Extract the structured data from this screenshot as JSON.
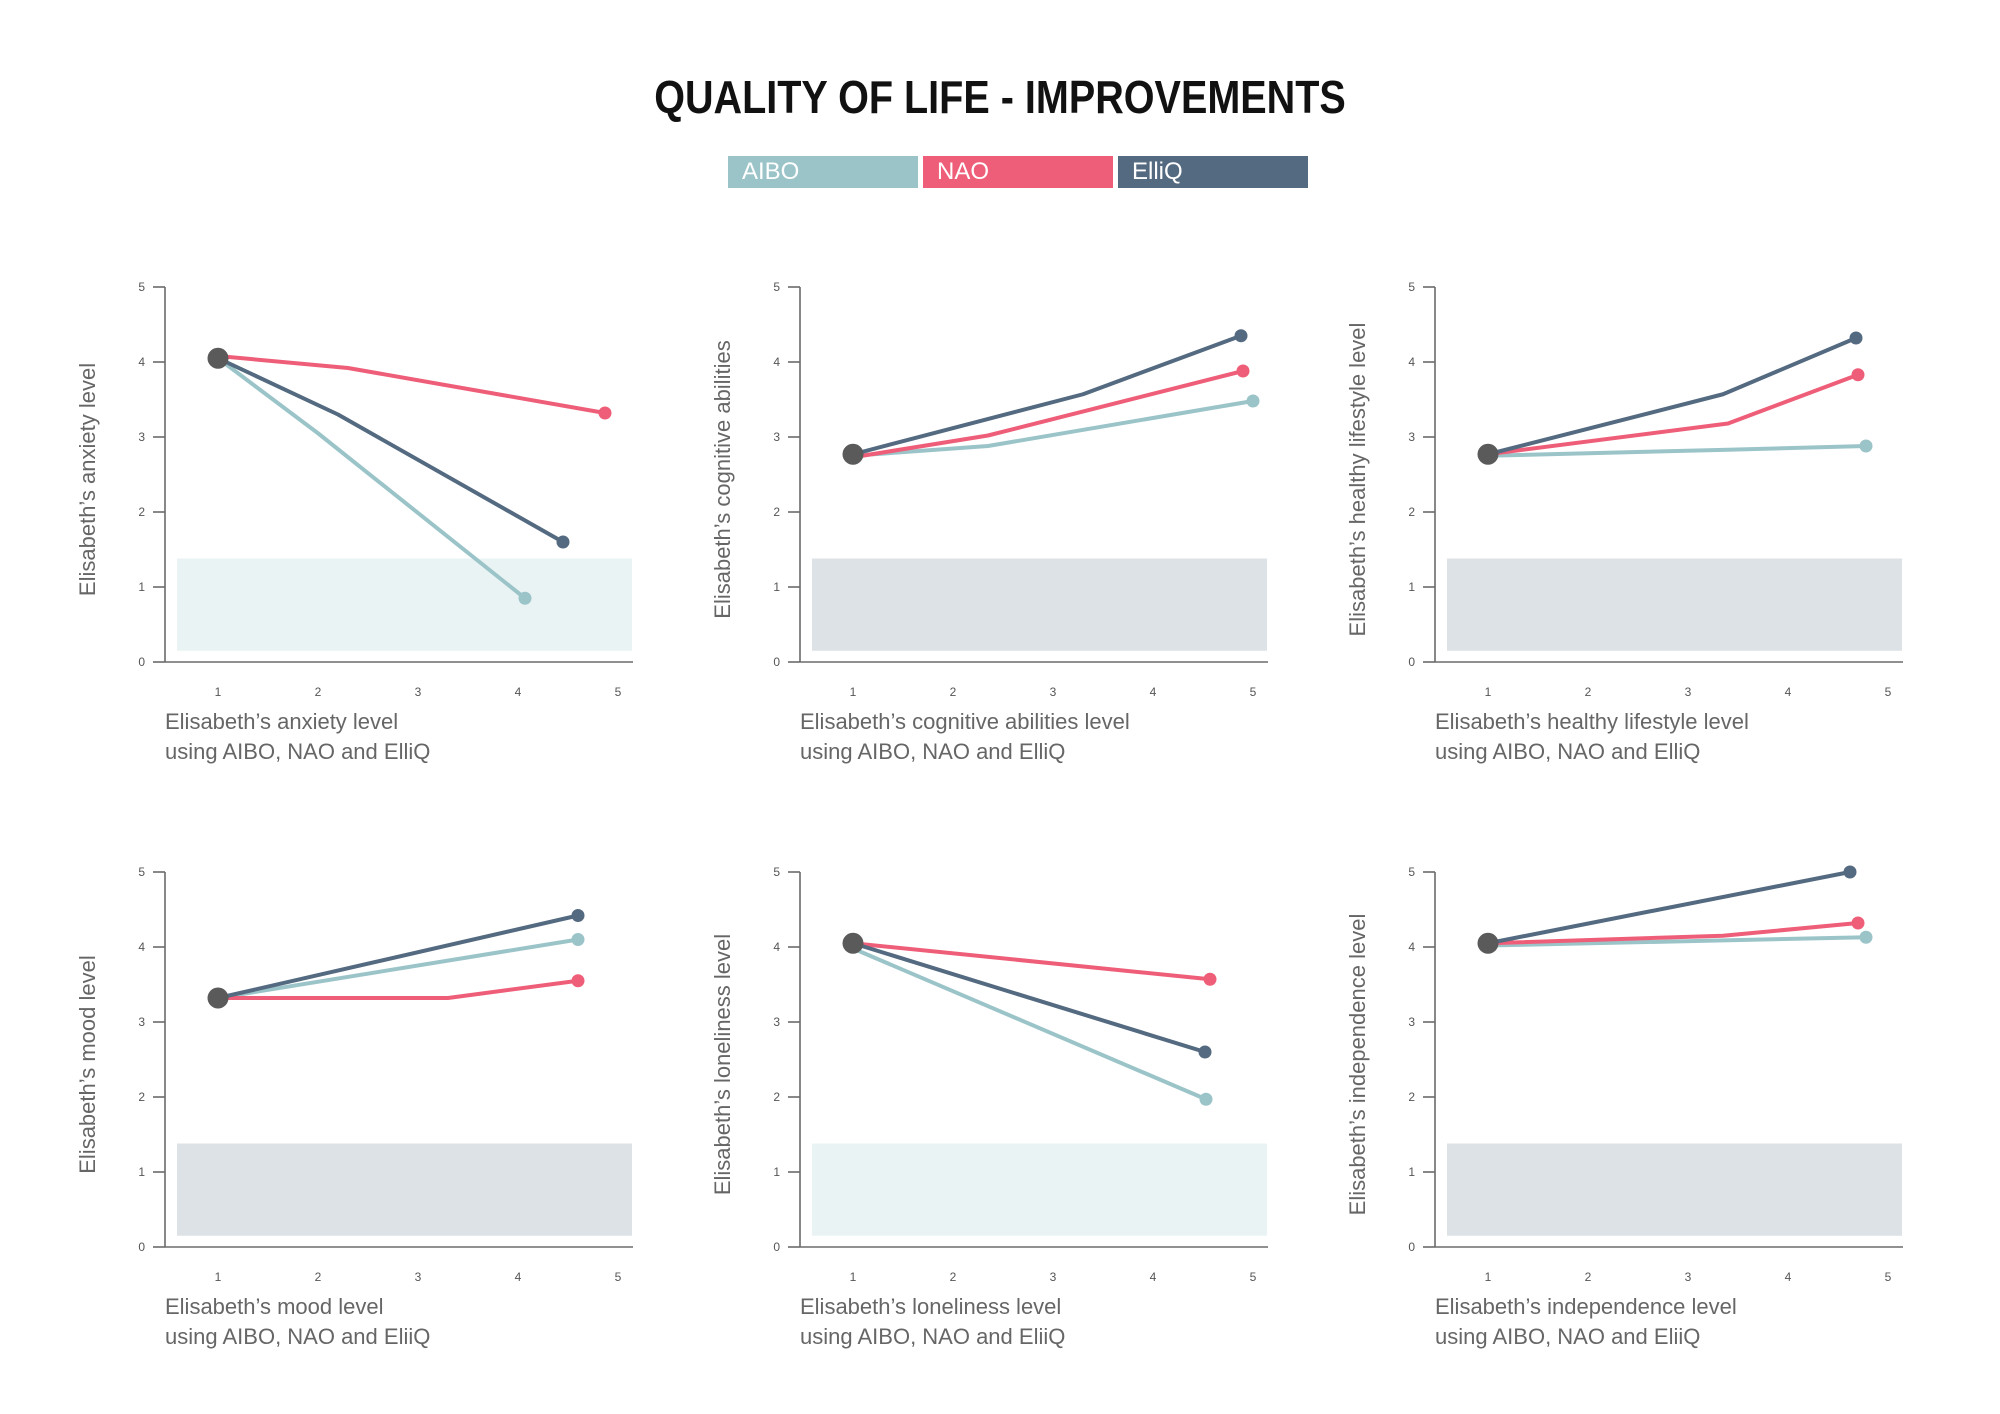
{
  "title": "QUALITY OF LIFE - IMPROVEMENTS",
  "legend": [
    {
      "label": "AIBO",
      "color": "#9bc4c9"
    },
    {
      "label": "NAO",
      "color": "#ef5e78"
    },
    {
      "label": "ElliQ",
      "color": "#546a80"
    }
  ],
  "start_marker_color": "#5a5a5a",
  "chart_data": [
    {
      "type": "line",
      "ylabel": "Elisabeth’s anxiety level",
      "xlabel": [
        "Elisabeth’s anxiety level",
        "using AIBO, NAO and ElliQ"
      ],
      "x_ticks": [
        "1",
        "2",
        "3",
        "4",
        "5"
      ],
      "y_ticks": [
        "0",
        "1",
        "2",
        "3",
        "4",
        "5"
      ],
      "xlim": [
        0.5,
        5.2
      ],
      "ylim": [
        0,
        5
      ],
      "band": {
        "y": [
          0.15,
          1.38
        ],
        "color": "#eaf3f4"
      },
      "start": [
        1,
        4.05
      ],
      "series": [
        {
          "name": "AIBO",
          "x": [
            1,
            2.0,
            4.07
          ],
          "y": [
            4.05,
            3.05,
            0.85
          ]
        },
        {
          "name": "NAO",
          "x": [
            1,
            2.3,
            4.87
          ],
          "y": [
            4.08,
            3.92,
            3.32
          ]
        },
        {
          "name": "ElliQ",
          "x": [
            1,
            2.2,
            4.45
          ],
          "y": [
            4.05,
            3.3,
            1.6
          ]
        }
      ]
    },
    {
      "type": "line",
      "ylabel": "Elisabeth’s cognitive abilities",
      "xlabel": [
        "Elisabeth’s cognitive abilities level",
        "using AIBO, NAO and ElliQ"
      ],
      "x_ticks": [
        "1",
        "2",
        "3",
        "4",
        "5"
      ],
      "y_ticks": [
        "0",
        "1",
        "2",
        "3",
        "4",
        "5"
      ],
      "xlim": [
        0.5,
        5.2
      ],
      "ylim": [
        0,
        5
      ],
      "band": {
        "y": [
          0.15,
          1.38
        ],
        "color": "#dde2e6"
      },
      "start": [
        1,
        2.77
      ],
      "series": [
        {
          "name": "AIBO",
          "x": [
            1,
            2.35,
            5.0
          ],
          "y": [
            2.75,
            2.88,
            3.48
          ]
        },
        {
          "name": "NAO",
          "x": [
            1,
            2.35,
            4.9
          ],
          "y": [
            2.73,
            3.02,
            3.88
          ]
        },
        {
          "name": "ElliQ",
          "x": [
            1,
            3.3,
            4.88
          ],
          "y": [
            2.77,
            3.57,
            4.35
          ]
        }
      ]
    },
    {
      "type": "line",
      "ylabel": "Elisabeth’s healthy lifestyle level",
      "xlabel": [
        "Elisabeth’s healthy lifestyle level",
        "using AIBO, NAO and ElliQ"
      ],
      "x_ticks": [
        "1",
        "2",
        "3",
        "4",
        "5"
      ],
      "y_ticks": [
        "0",
        "1",
        "2",
        "3",
        "4",
        "5"
      ],
      "xlim": [
        0.5,
        5.2
      ],
      "ylim": [
        0,
        5
      ],
      "band": {
        "y": [
          0.15,
          1.38
        ],
        "color": "#dde2e6"
      },
      "start": [
        1,
        2.77
      ],
      "series": [
        {
          "name": "AIBO",
          "x": [
            1,
            3.4,
            4.78
          ],
          "y": [
            2.75,
            2.83,
            2.88
          ]
        },
        {
          "name": "NAO",
          "x": [
            1,
            3.4,
            4.7
          ],
          "y": [
            2.77,
            3.18,
            3.83
          ]
        },
        {
          "name": "ElliQ",
          "x": [
            1,
            3.35,
            4.68
          ],
          "y": [
            2.77,
            3.57,
            4.32
          ]
        }
      ]
    },
    {
      "type": "line",
      "ylabel": "Elisabeth’s  mood level",
      "xlabel": [
        "Elisabeth’s mood level",
        "using AIBO, NAO and EliiQ"
      ],
      "x_ticks": [
        "1",
        "2",
        "3",
        "4",
        "5"
      ],
      "y_ticks": [
        "0",
        "1",
        "2",
        "3",
        "4",
        "5"
      ],
      "xlim": [
        0.5,
        5.2
      ],
      "ylim": [
        0,
        5
      ],
      "band": {
        "y": [
          0.15,
          1.38
        ],
        "color": "#dde2e6"
      },
      "start": [
        1,
        3.32
      ],
      "series": [
        {
          "name": "AIBO",
          "x": [
            1,
            4.6
          ],
          "y": [
            3.32,
            4.1
          ]
        },
        {
          "name": "NAO",
          "x": [
            1,
            3.3,
            4.6
          ],
          "y": [
            3.32,
            3.32,
            3.55
          ]
        },
        {
          "name": "ElliQ",
          "x": [
            1,
            4.6
          ],
          "y": [
            3.32,
            4.42
          ]
        }
      ]
    },
    {
      "type": "line",
      "ylabel": "Elisabeth’s  loneliness level",
      "xlabel": [
        "Elisabeth’s loneliness level",
        "using AIBO, NAO and EliiQ"
      ],
      "x_ticks": [
        "1",
        "2",
        "3",
        "4",
        "5"
      ],
      "y_ticks": [
        "0",
        "1",
        "2",
        "3",
        "4",
        "5"
      ],
      "xlim": [
        0.5,
        5.2
      ],
      "ylim": [
        0,
        5
      ],
      "band": {
        "y": [
          0.15,
          1.38
        ],
        "color": "#eaf3f4"
      },
      "start": [
        1,
        4.05
      ],
      "series": [
        {
          "name": "AIBO",
          "x": [
            1,
            4.53
          ],
          "y": [
            3.98,
            1.97
          ]
        },
        {
          "name": "NAO",
          "x": [
            1,
            4.57
          ],
          "y": [
            4.05,
            3.57
          ]
        },
        {
          "name": "ElliQ",
          "x": [
            1,
            4.52
          ],
          "y": [
            4.05,
            2.6
          ]
        }
      ]
    },
    {
      "type": "line",
      "ylabel": "Elisabeth’s  independence level",
      "xlabel": [
        "Elisabeth’s independence level",
        "using AIBO, NAO and EliiQ"
      ],
      "x_ticks": [
        "1",
        "2",
        "3",
        "4",
        "5"
      ],
      "y_ticks": [
        "0",
        "1",
        "2",
        "3",
        "4",
        "5"
      ],
      "xlim": [
        0.5,
        5.2
      ],
      "ylim": [
        0,
        5
      ],
      "band": {
        "y": [
          0.15,
          1.38
        ],
        "color": "#dde2e6"
      },
      "start": [
        1,
        4.05
      ],
      "series": [
        {
          "name": "AIBO",
          "x": [
            1,
            4.78
          ],
          "y": [
            4.02,
            4.13
          ]
        },
        {
          "name": "NAO",
          "x": [
            1,
            3.35,
            4.7
          ],
          "y": [
            4.05,
            4.15,
            4.32
          ]
        },
        {
          "name": "ElliQ",
          "x": [
            1,
            4.62
          ],
          "y": [
            4.05,
            5.0
          ]
        }
      ]
    }
  ]
}
